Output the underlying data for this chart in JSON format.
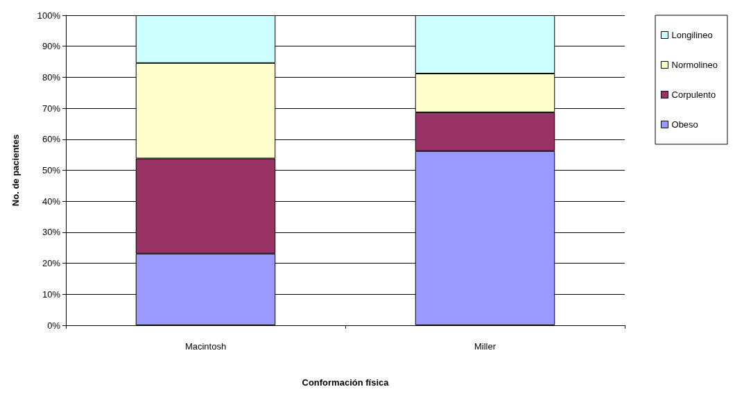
{
  "chart_data": {
    "type": "bar",
    "stacked": true,
    "xlabel": "Conformación física",
    "ylabel": "No. de pacientes",
    "categories": [
      "Macintosh",
      "Miller"
    ],
    "series": [
      {
        "name": "Obeso",
        "color": "#9999ff",
        "values": [
          23.1,
          56.2
        ]
      },
      {
        "name": "Corpulento",
        "color": "#993366",
        "values": [
          30.7,
          12.5
        ]
      },
      {
        "name": "Normolineo",
        "color": "#ffffcc",
        "values": [
          30.8,
          12.5
        ]
      },
      {
        "name": "Longilineo",
        "color": "#ccffff",
        "values": [
          15.4,
          18.8
        ]
      }
    ],
    "ylim": [
      0,
      100
    ],
    "yticks": [
      {
        "value": 0,
        "label": "0%"
      },
      {
        "value": 10,
        "label": "10%"
      },
      {
        "value": 20,
        "label": "20%"
      },
      {
        "value": 30,
        "label": "30%"
      },
      {
        "value": 40,
        "label": "40%"
      },
      {
        "value": 50,
        "label": "50%"
      },
      {
        "value": 60,
        "label": "60%"
      },
      {
        "value": 70,
        "label": "70%"
      },
      {
        "value": 80,
        "label": "80%"
      },
      {
        "value": 90,
        "label": "90%"
      },
      {
        "value": 100,
        "label": "100%"
      }
    ],
    "grid": "y",
    "legend": "right"
  }
}
